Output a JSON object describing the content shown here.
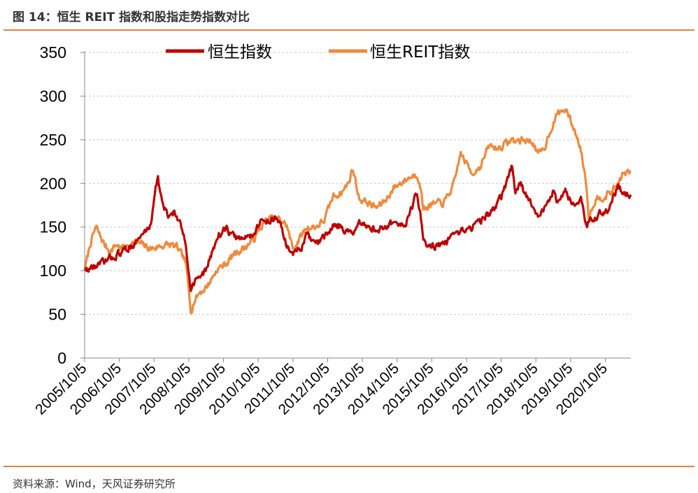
{
  "figure_title": "图 14：恒生 REIT 指数和股指走势指数对比",
  "source": "资料来源：Wind，天风证券研究所",
  "colors": {
    "accent": "#E8823A",
    "hsi": "#C00000",
    "reit": "#F08A3C"
  },
  "chart_data": {
    "type": "line",
    "title": "",
    "xlabel": "",
    "ylabel": "",
    "ylim": [
      0,
      350
    ],
    "yticks": [
      "0",
      "50",
      "100",
      "150",
      "200",
      "250",
      "300",
      "350"
    ],
    "xticks": [
      "2005/10/5",
      "2006/10/5",
      "2007/10/5",
      "2008/10/5",
      "2009/10/5",
      "2010/10/5",
      "2011/10/5",
      "2012/10/5",
      "2013/10/5",
      "2014/10/5",
      "2015/10/5",
      "2016/10/5",
      "2017/10/5",
      "2018/10/5",
      "2019/10/5",
      "2020/10/5"
    ],
    "x_range": [
      "2005/10/5",
      "2021/6/30"
    ],
    "grid": "horizontal-dashed",
    "legend_position": "top",
    "series": [
      {
        "name": "恒生指数",
        "color": "#C00000",
        "x": [
          "2005/10/5",
          "2006/1/5",
          "2006/4/5",
          "2006/7/5",
          "2006/10/5",
          "2007/1/5",
          "2007/4/5",
          "2007/7/5",
          "2007/9/1",
          "2007/10/20",
          "2007/11/15",
          "2008/1/5",
          "2008/3/1",
          "2008/5/1",
          "2008/7/1",
          "2008/9/1",
          "2008/10/27",
          "2009/1/1",
          "2009/3/9",
          "2009/6/1",
          "2009/8/1",
          "2009/11/1",
          "2010/2/1",
          "2010/5/1",
          "2010/8/1",
          "2010/11/5",
          "2011/2/1",
          "2011/4/1",
          "2011/6/1",
          "2011/8/1",
          "2011/10/4",
          "2012/1/1",
          "2012/3/1",
          "2012/6/1",
          "2012/9/1",
          "2013/1/1",
          "2013/3/1",
          "2013/6/25",
          "2013/9/1",
          "2014/1/1",
          "2014/3/1",
          "2014/6/1",
          "2014/9/1",
          "2014/11/1",
          "2015/1/1",
          "2015/3/1",
          "2015/4/28",
          "2015/6/1",
          "2015/7/8",
          "2015/9/1",
          "2016/2/12",
          "2016/6/1",
          "2016/9/1",
          "2016/12/1",
          "2017/3/1",
          "2017/6/1",
          "2017/9/1",
          "2017/11/1",
          "2018/1/26",
          "2018/3/1",
          "2018/5/1",
          "2018/7/1",
          "2018/9/1",
          "2018/10/30",
          "2019/1/1",
          "2019/4/1",
          "2019/6/1",
          "2019/8/15",
          "2019/11/1",
          "2020/1/20",
          "2020/3/19",
          "2020/5/1",
          "2020/7/1",
          "2020/9/1",
          "2020/11/1",
          "2021/2/18",
          "2021/4/1",
          "2021/6/30"
        ],
        "y": [
          100,
          104,
          108,
          114,
          120,
          126,
          133,
          145,
          152,
          198,
          206,
          175,
          162,
          168,
          154,
          132,
          80,
          92,
          95,
          118,
          140,
          148,
          138,
          136,
          142,
          156,
          158,
          160,
          152,
          128,
          120,
          126,
          140,
          130,
          138,
          155,
          150,
          140,
          152,
          150,
          146,
          150,
          156,
          150,
          155,
          170,
          187,
          170,
          135,
          128,
          130,
          138,
          145,
          150,
          157,
          165,
          178,
          190,
          220,
          192,
          198,
          183,
          175,
          165,
          170,
          190,
          178,
          190,
          178,
          185,
          150,
          160,
          160,
          168,
          170,
          198,
          190,
          187
        ]
      },
      {
        "name": "恒生REIT指数",
        "color": "#F08A3C",
        "x": [
          "2005/10/5",
          "2005/12/1",
          "2006/2/1",
          "2006/3/15",
          "2006/5/1",
          "2006/7/1",
          "2006/9/1",
          "2006/11/1",
          "2007/1/1",
          "2007/3/1",
          "2007/6/1",
          "2007/9/1",
          "2007/12/1",
          "2008/3/1",
          "2008/6/1",
          "2008/9/1",
          "2008/10/27",
          "2008/12/1",
          "2009/2/1",
          "2009/3/9",
          "2009/5/1",
          "2009/8/1",
          "2009/11/1",
          "2010/2/1",
          "2010/6/1",
          "2010/9/1",
          "2010/12/1",
          "2011/3/1",
          "2011/6/1",
          "2011/8/1",
          "2011/10/4",
          "2012/1/1",
          "2012/3/1",
          "2012/6/1",
          "2012/9/1",
          "2012/12/1",
          "2013/3/1",
          "2013/5/10",
          "2013/6/25",
          "2013/9/1",
          "2013/12/1",
          "2014/3/1",
          "2014/6/1",
          "2014/9/1",
          "2014/12/1",
          "2015/3/1",
          "2015/4/28",
          "2015/6/1",
          "2015/7/8",
          "2015/9/1",
          "2016/2/12",
          "2016/6/1",
          "2016/8/1",
          "2016/9/15",
          "2016/12/1",
          "2017/3/1",
          "2017/6/1",
          "2017/9/1",
          "2018/1/26",
          "2018/3/1",
          "2018/6/1",
          "2018/9/1",
          "2018/10/30",
          "2019/1/1",
          "2019/3/1",
          "2019/5/20",
          "2019/8/15",
          "2019/11/1",
          "2020/1/20",
          "2020/3/19",
          "2020/4/15",
          "2020/6/1",
          "2020/8/1",
          "2020/10/1",
          "2020/12/1",
          "2021/2/18",
          "2021/4/1",
          "2021/6/30"
        ],
        "y": [
          100,
          130,
          150,
          140,
          130,
          122,
          130,
          126,
          128,
          133,
          130,
          125,
          128,
          130,
          127,
          110,
          55,
          66,
          76,
          78,
          85,
          102,
          108,
          120,
          128,
          138,
          155,
          160,
          158,
          152,
          125,
          140,
          150,
          150,
          158,
          185,
          190,
          200,
          218,
          183,
          178,
          172,
          180,
          195,
          202,
          208,
          210,
          205,
          170,
          175,
          178,
          200,
          235,
          226,
          212,
          220,
          243,
          240,
          250,
          248,
          250,
          248,
          232,
          240,
          260,
          280,
          285,
          265,
          240,
          200,
          160,
          178,
          185,
          185,
          190,
          200,
          210,
          213
        ]
      }
    ]
  }
}
